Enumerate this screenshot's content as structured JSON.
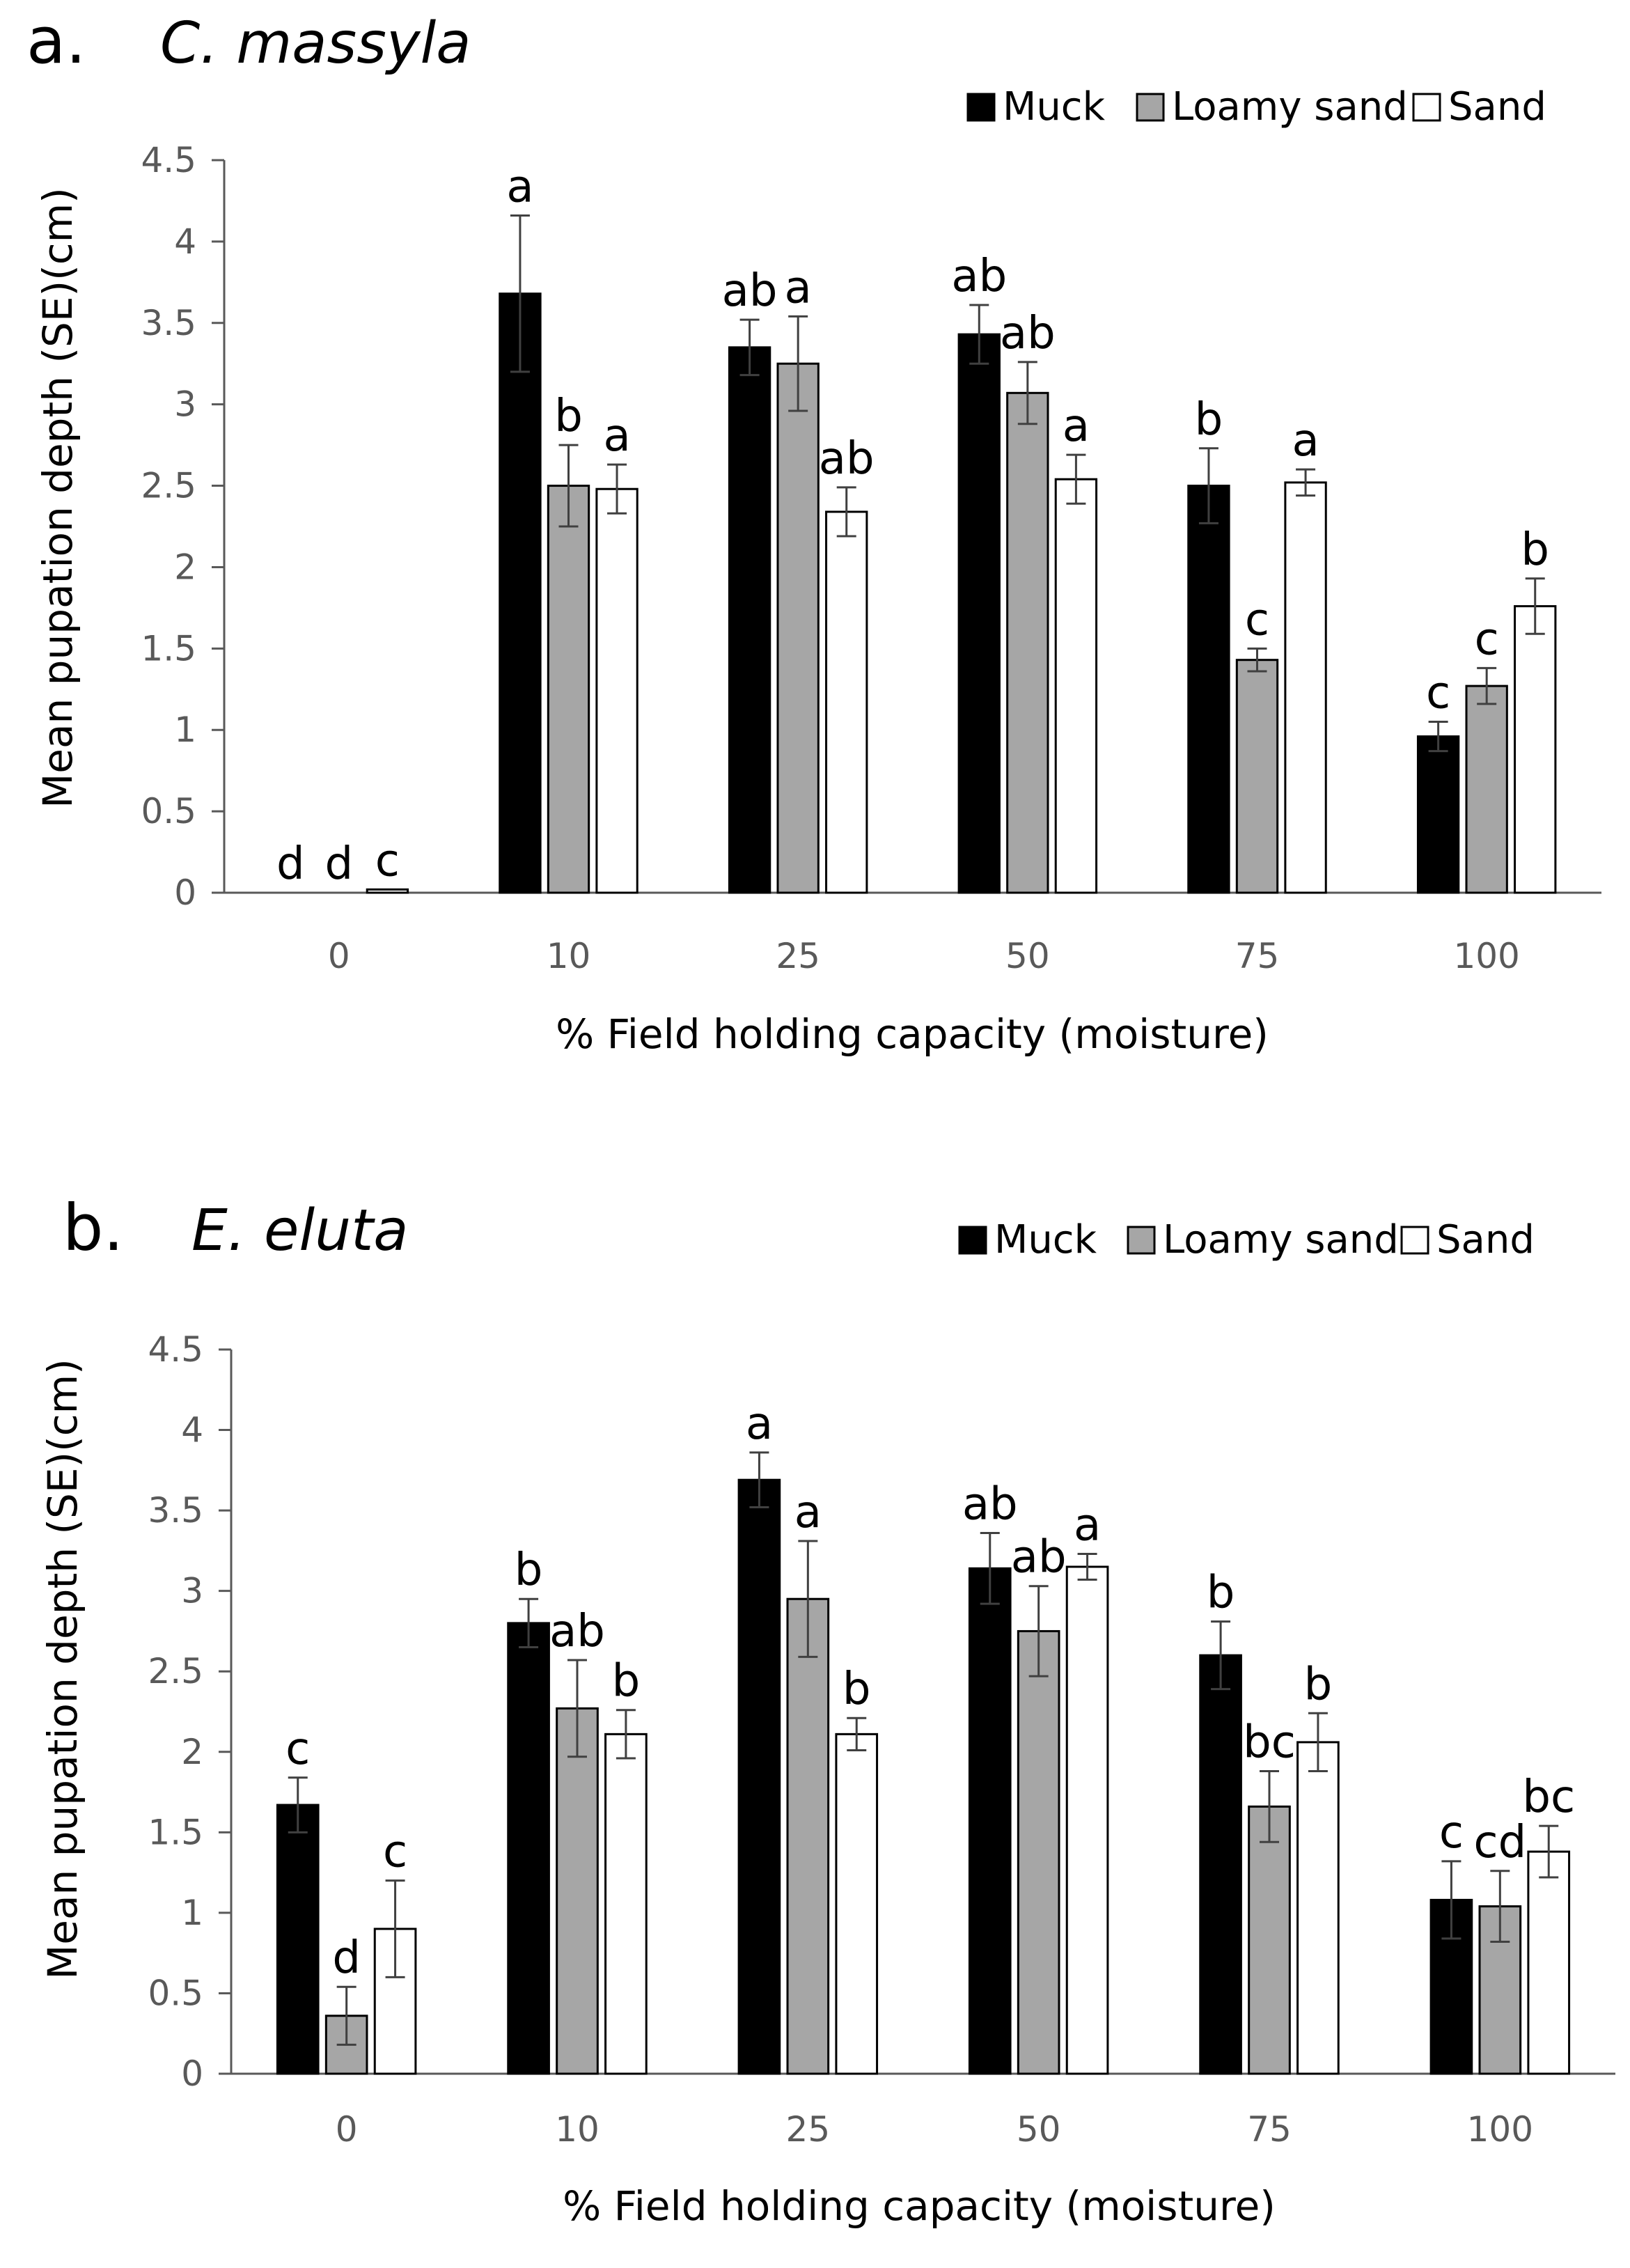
{
  "colors": {
    "muck": "#000000",
    "loamy_sand": "#a6a6a6",
    "sand": "#ffffff",
    "bar_stroke": "#000000",
    "axis": "#595959",
    "errorbar": "#404040"
  },
  "chart_data": [
    {
      "type": "bar",
      "panel_label": "a.",
      "title": "C. massyla",
      "categories": [
        "0",
        "10",
        "25",
        "50",
        "75",
        "100"
      ],
      "xlabel": "% Field holding capacity (moisture)",
      "ylabel": "Mean pupation depth (SE)(cm)",
      "ylim": [
        0,
        4.5
      ],
      "yticks": [
        "0",
        "0.5",
        "1",
        "1.5",
        "2",
        "2.5",
        "3",
        "3.5",
        "4",
        "4.5"
      ],
      "grid": false,
      "legend": "top-right",
      "series": [
        {
          "name": "Muck",
          "values": [
            0,
            3.68,
            3.35,
            3.43,
            2.5,
            0.96
          ],
          "errors": [
            0,
            0.48,
            0.17,
            0.18,
            0.23,
            0.09
          ],
          "letters": [
            "d",
            "a",
            "ab",
            "ab",
            "b",
            "c"
          ]
        },
        {
          "name": "Loamy sand",
          "values": [
            0,
            2.5,
            3.25,
            3.07,
            1.43,
            1.27
          ],
          "errors": [
            0,
            0.25,
            0.29,
            0.19,
            0.07,
            0.11
          ],
          "letters": [
            "d",
            "b",
            "a",
            "ab",
            "c",
            "c"
          ]
        },
        {
          "name": "Sand",
          "values": [
            0.02,
            2.48,
            2.34,
            2.54,
            2.52,
            1.76
          ],
          "errors": [
            0,
            0.15,
            0.15,
            0.15,
            0.08,
            0.17
          ],
          "letters": [
            "c",
            "a",
            "ab",
            "a",
            "a",
            "b"
          ]
        }
      ]
    },
    {
      "type": "bar",
      "panel_label": "b.",
      "title": "E. eluta",
      "categories": [
        "0",
        "10",
        "25",
        "50",
        "75",
        "100"
      ],
      "xlabel": "% Field holding capacity (moisture)",
      "ylabel": "Mean pupation depth (SE)(cm)",
      "ylim": [
        0,
        4.5
      ],
      "yticks": [
        "0",
        "0.5",
        "1",
        "1.5",
        "2",
        "2.5",
        "3",
        "3.5",
        "4",
        "4.5"
      ],
      "grid": false,
      "legend": "top-right",
      "series": [
        {
          "name": "Muck",
          "values": [
            1.67,
            2.8,
            3.69,
            3.14,
            2.6,
            1.08
          ],
          "errors": [
            0.17,
            0.15,
            0.17,
            0.22,
            0.21,
            0.24
          ],
          "letters": [
            "c",
            "b",
            "a",
            "ab",
            "b",
            "c"
          ]
        },
        {
          "name": "Loamy sand",
          "values": [
            0.36,
            2.27,
            2.95,
            2.75,
            1.66,
            1.04
          ],
          "errors": [
            0.18,
            0.3,
            0.36,
            0.28,
            0.22,
            0.22
          ],
          "letters": [
            "d",
            "ab",
            "a",
            "ab",
            "bc",
            "cd"
          ]
        },
        {
          "name": "Sand",
          "values": [
            0.9,
            2.11,
            2.11,
            3.15,
            2.06,
            1.38
          ],
          "errors": [
            0.3,
            0.15,
            0.1,
            0.08,
            0.18,
            0.16
          ],
          "letters": [
            "c",
            "b",
            "b",
            "a",
            "b",
            "bc"
          ]
        }
      ]
    }
  ]
}
